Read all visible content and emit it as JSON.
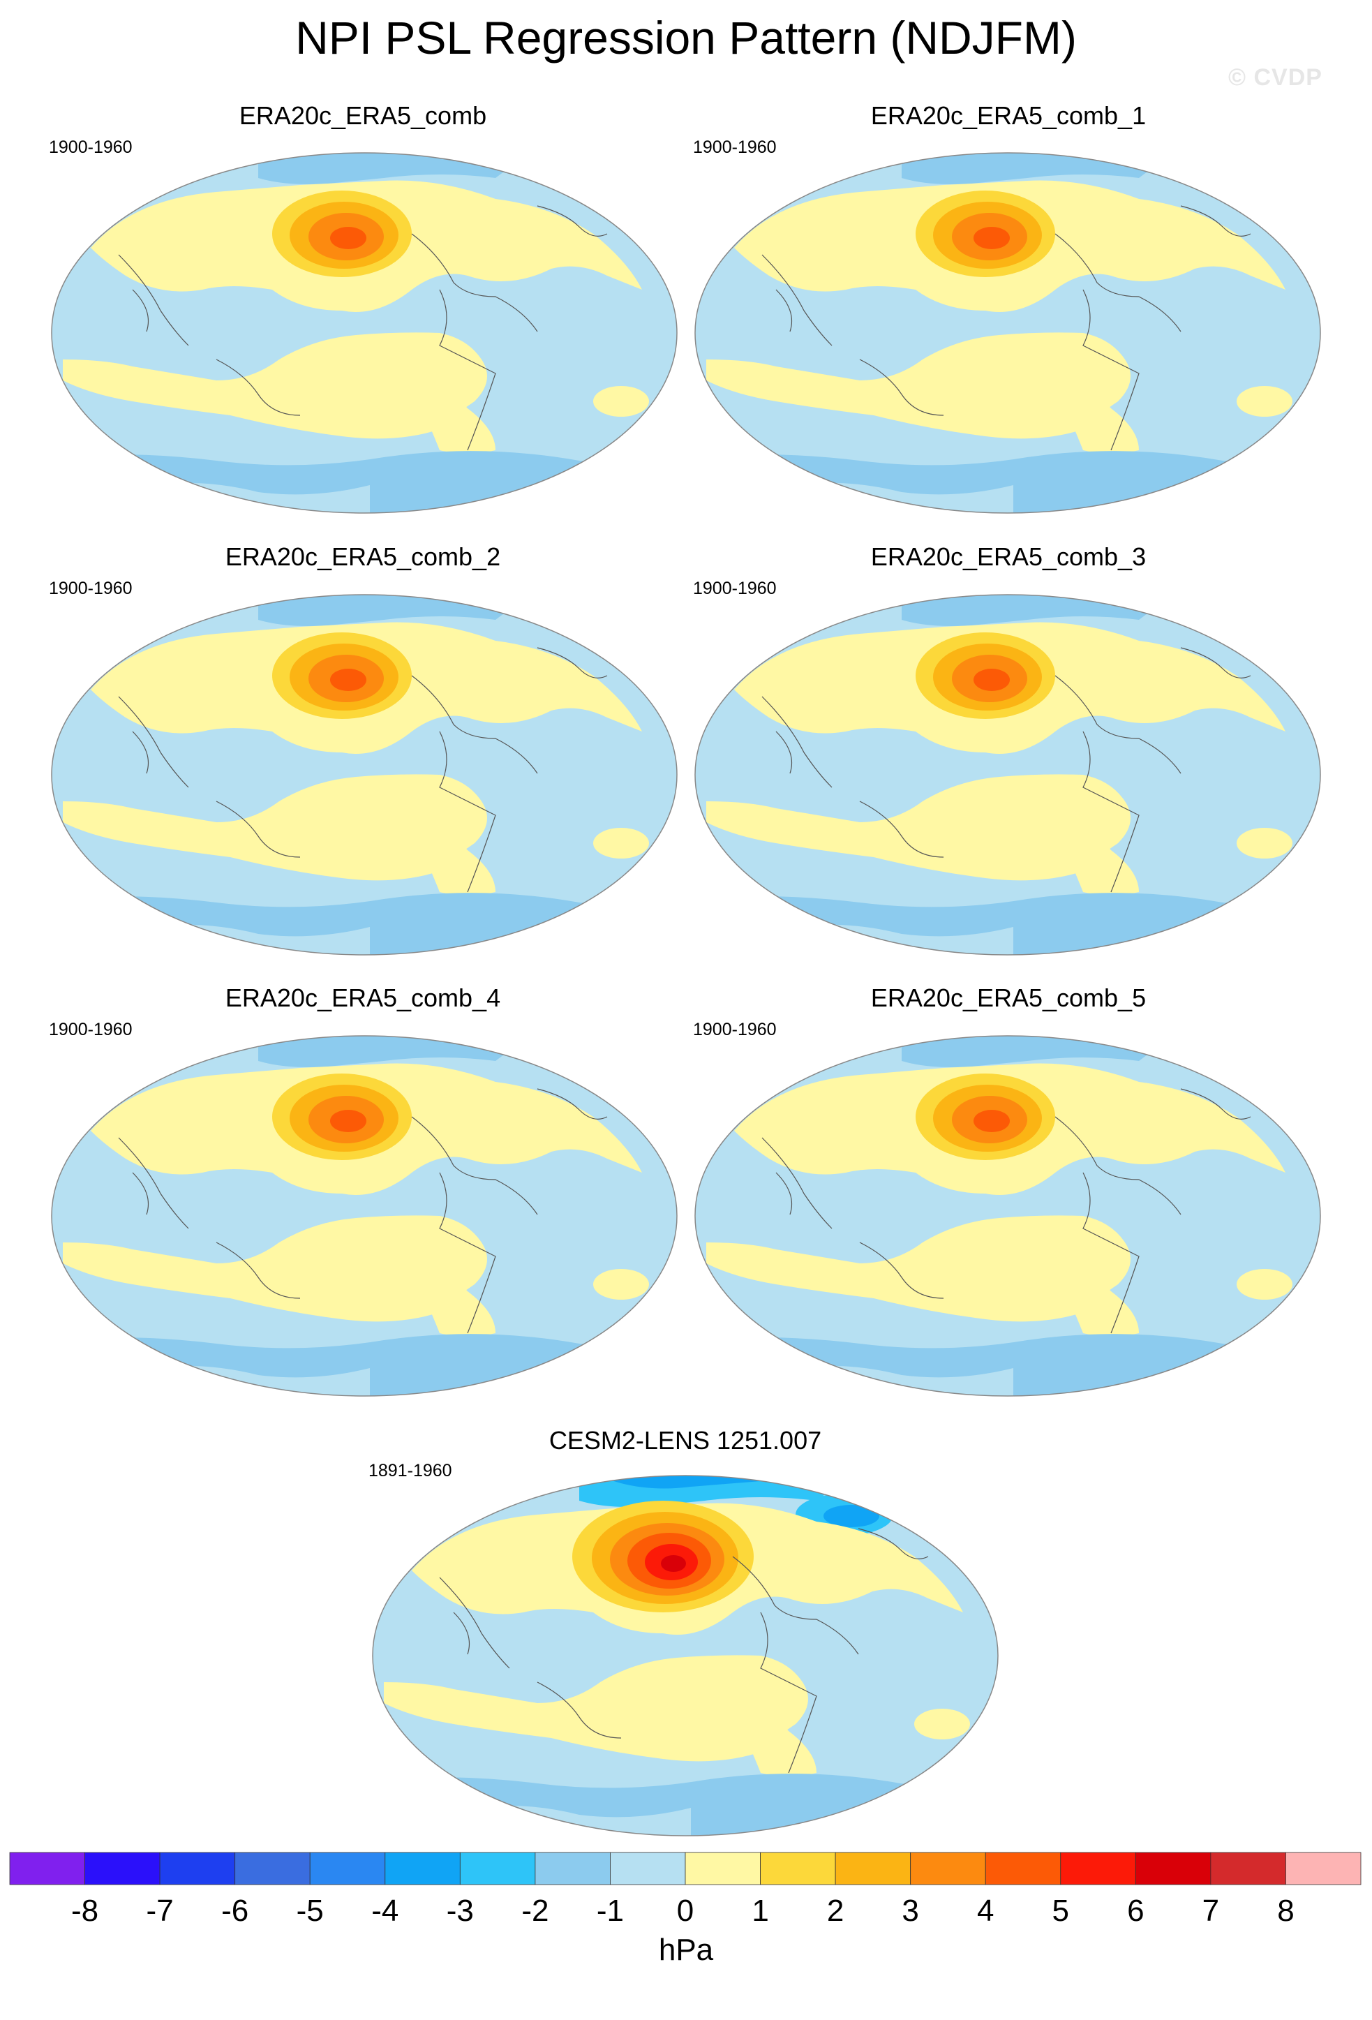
{
  "title": "NPI PSL Regression Pattern (NDJFM)",
  "watermark": "© CVDP",
  "panels": [
    {
      "title": "ERA20c_ERA5_comb",
      "period": "1900-1960"
    },
    {
      "title": "ERA20c_ERA5_comb_1",
      "period": "1900-1960"
    },
    {
      "title": "ERA20c_ERA5_comb_2",
      "period": "1900-1960"
    },
    {
      "title": "ERA20c_ERA5_comb_3",
      "period": "1900-1960"
    },
    {
      "title": "ERA20c_ERA5_comb_4",
      "period": "1900-1960"
    },
    {
      "title": "ERA20c_ERA5_comb_5",
      "period": "1900-1960"
    },
    {
      "title": "CESM2-LENS 1251.007",
      "period": "1891-1960"
    }
  ],
  "colorbar": {
    "labels": [
      "-8",
      "-7",
      "-6",
      "-5",
      "-4",
      "-3",
      "-2",
      "-1",
      "0",
      "1",
      "2",
      "3",
      "4",
      "5",
      "6",
      "7",
      "8"
    ],
    "colors": [
      "#8020ee",
      "#2b10fa",
      "#1e3ff0",
      "#3a6de0",
      "#2a87f2",
      "#10a4f5",
      "#2ec4f8",
      "#8ccbee",
      "#b6e0f2",
      "#fff8a4",
      "#fcd83a",
      "#fbb414",
      "#fc8a10",
      "#fc5a06",
      "#fc1a08",
      "#d90008",
      "#d42a2c",
      "#fdb4b4"
    ],
    "unit": "hPa"
  },
  "colors": {
    "ocean_neg1": "#b6e0f2",
    "pos1": "#fff8a4",
    "neg2": "#8ccbee",
    "neg3": "#2ec4f8",
    "neg4": "#10a4f5",
    "pos2": "#fcd83a",
    "pos3": "#fbb414",
    "pos4": "#fc8a10",
    "pos5": "#fc5a06",
    "pos6": "#fc1a08",
    "pos7": "#d90008"
  }
}
